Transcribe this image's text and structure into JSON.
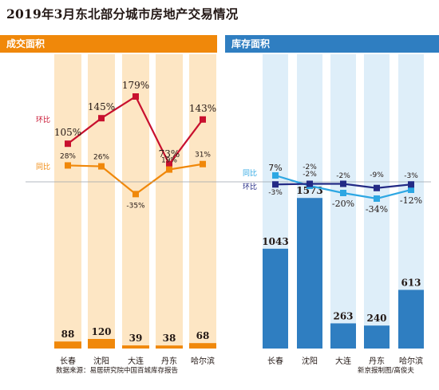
{
  "title": "2019年3月东北部分城市房地产交易情况",
  "left_header": "成交面积",
  "right_header": "库存面积",
  "source": "数据来源：易居研究院中国百城库存报告",
  "credit": "新京报制图/高俊夫",
  "colors": {
    "orange": "#f0880a",
    "orange_col": "#fde6c4",
    "blue": "#2f7ec1",
    "blue_col": "#deeef9",
    "red": "#c8102e",
    "light_blue": "#2da7e3",
    "navy": "#232a85"
  },
  "chart_data": [
    {
      "type": "bar",
      "panel": "成交面积",
      "categories": [
        "长春",
        "沈阳",
        "大连",
        "丹东",
        "哈尔滨"
      ],
      "values": [
        88,
        120,
        39,
        38,
        68
      ],
      "value_labels": [
        "88",
        "120",
        "39",
        "38",
        "68"
      ],
      "lines": [
        {
          "name": "环比",
          "values": [
            105,
            145,
            179,
            73,
            143
          ],
          "labels": [
            "105%",
            "145%",
            "179%",
            "73%",
            "143%"
          ]
        },
        {
          "name": "同比",
          "values": [
            28,
            26,
            -35,
            19,
            31
          ],
          "labels": [
            "28%",
            "26%",
            "-35%",
            "19%",
            "31%"
          ]
        }
      ]
    },
    {
      "type": "bar",
      "panel": "库存面积",
      "categories": [
        "长春",
        "沈阳",
        "大连",
        "丹东",
        "哈尔滨"
      ],
      "values": [
        1043,
        1573,
        263,
        240,
        613
      ],
      "value_labels": [
        "1043",
        "1573",
        "263",
        "240",
        "613"
      ],
      "lines": [
        {
          "name": "同比",
          "values": [
            7,
            -2,
            -20,
            -34,
            -12
          ],
          "labels": [
            "7%",
            "-2%",
            "-20%",
            "-34%",
            "-12%"
          ]
        },
        {
          "name": "环比",
          "values": [
            -3,
            -2,
            -2,
            -9,
            -3
          ],
          "labels": [
            "-3%",
            "-2%",
            "-2%",
            "-9%",
            "-3%"
          ]
        }
      ]
    }
  ]
}
